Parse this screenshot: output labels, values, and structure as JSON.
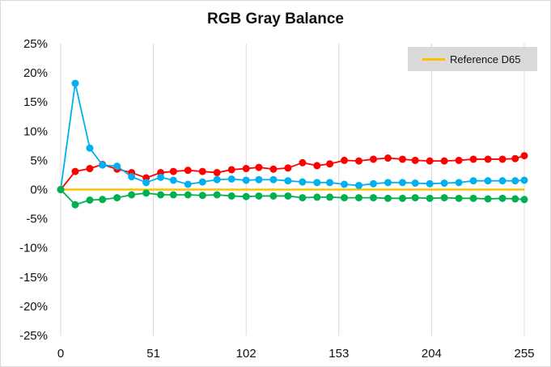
{
  "chart_data": {
    "type": "line",
    "title": "RGB Gray Balance",
    "xlabel": "",
    "ylabel": "",
    "x_ticks": [
      0,
      51,
      102,
      153,
      204,
      255
    ],
    "xlim": [
      0,
      255
    ],
    "ylim": [
      -25,
      25
    ],
    "y_ticks": [
      "-25%",
      "-20%",
      "-15%",
      "-10%",
      "-5%",
      "0%",
      "5%",
      "10%",
      "15%",
      "20%",
      "25%"
    ],
    "grid": "vertical",
    "legend_position": "top-right",
    "x": [
      0,
      8,
      16,
      23,
      31,
      39,
      47,
      55,
      62,
      70,
      78,
      86,
      94,
      102,
      109,
      117,
      125,
      133,
      141,
      148,
      156,
      164,
      172,
      180,
      188,
      195,
      203,
      211,
      219,
      227,
      235,
      243,
      250,
      255
    ],
    "series": [
      {
        "color": "#ff0000",
        "values": [
          0,
          3.1,
          3.6,
          4.3,
          3.5,
          2.9,
          2.0,
          2.9,
          3.1,
          3.3,
          3.1,
          2.9,
          3.4,
          3.6,
          3.8,
          3.5,
          3.7,
          4.6,
          4.1,
          4.4,
          5.0,
          4.9,
          5.2,
          5.4,
          5.2,
          5.0,
          4.9,
          4.9,
          5.0,
          5.2,
          5.2,
          5.2,
          5.3,
          5.8
        ]
      },
      {
        "color": "#00b0f0",
        "values": [
          0,
          18.2,
          7.1,
          4.2,
          4.0,
          2.2,
          1.2,
          2.1,
          1.6,
          0.9,
          1.3,
          1.7,
          1.8,
          1.6,
          1.7,
          1.7,
          1.5,
          1.3,
          1.2,
          1.2,
          0.9,
          0.7,
          1.0,
          1.2,
          1.2,
          1.1,
          1.0,
          1.1,
          1.2,
          1.5,
          1.5,
          1.5,
          1.5,
          1.6
        ]
      },
      {
        "color": "#00b050",
        "values": [
          0,
          -2.6,
          -1.8,
          -1.7,
          -1.4,
          -0.9,
          -0.6,
          -0.9,
          -0.9,
          -0.9,
          -1.0,
          -0.9,
          -1.1,
          -1.2,
          -1.1,
          -1.1,
          -1.1,
          -1.4,
          -1.3,
          -1.3,
          -1.4,
          -1.4,
          -1.4,
          -1.5,
          -1.5,
          -1.4,
          -1.5,
          -1.4,
          -1.5,
          -1.5,
          -1.6,
          -1.5,
          -1.6,
          -1.7
        ]
      }
    ],
    "reference": {
      "name": "Reference D65",
      "color": "#ffc000",
      "value": 0
    }
  }
}
